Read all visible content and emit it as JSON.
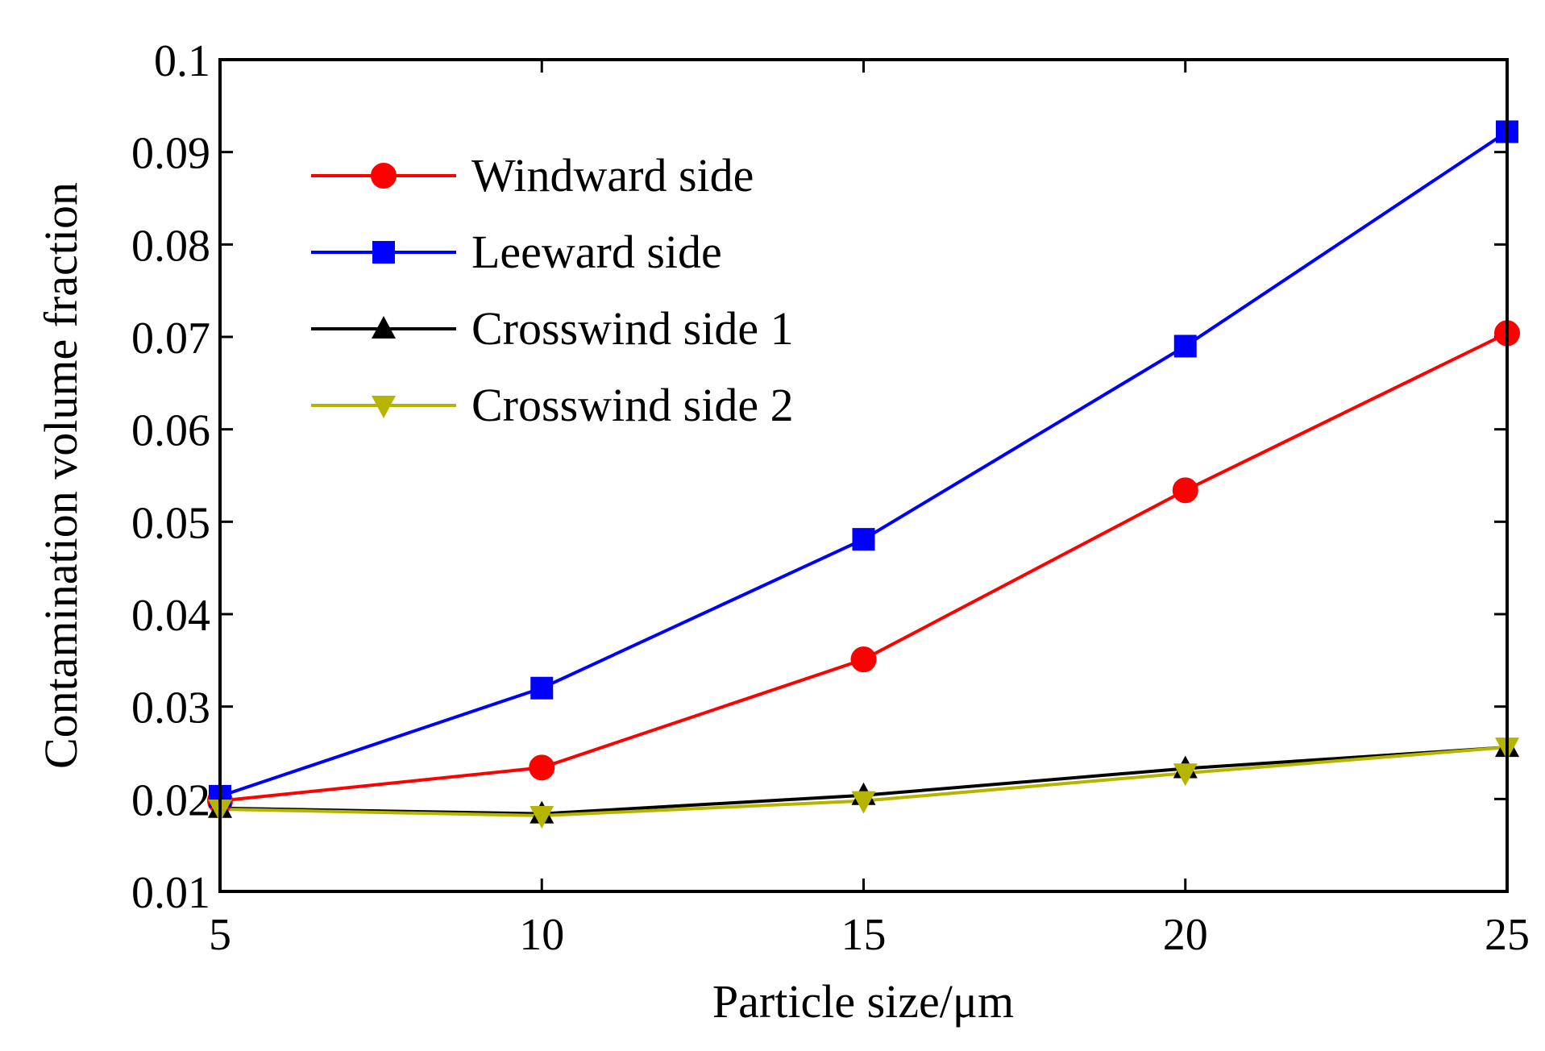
{
  "chart_data": {
    "type": "line",
    "title": "",
    "xlabel": "Particle size/μm",
    "ylabel": "Contamination volume fraction",
    "x": [
      5,
      10,
      15,
      20,
      25
    ],
    "xlim": [
      5,
      25
    ],
    "ylim": [
      0.01,
      0.1
    ],
    "xticks": [
      5,
      10,
      15,
      20,
      25
    ],
    "xtick_labels": [
      "5",
      "10",
      "15",
      "20",
      "25"
    ],
    "yticks": [
      0.01,
      0.02,
      0.03,
      0.04,
      0.05,
      0.06,
      0.07,
      0.08,
      0.09,
      0.1
    ],
    "ytick_labels": [
      "0.01",
      "0.02",
      "0.03",
      "0.04",
      "0.05",
      "0.06",
      "0.07",
      "0.08",
      "0.09",
      "0.1"
    ],
    "grid": false,
    "legend_position": "top-left",
    "series": [
      {
        "name": "Windward side",
        "values": [
          0.0198,
          0.0234,
          0.0351,
          0.0534,
          0.0704
        ],
        "color": "#ff0000",
        "marker": "circle"
      },
      {
        "name": "Leeward side",
        "values": [
          0.0203,
          0.032,
          0.0481,
          0.069,
          0.0922
        ],
        "color": "#0000ff",
        "marker": "square"
      },
      {
        "name": "Crosswind side 1",
        "values": [
          0.019,
          0.0184,
          0.0204,
          0.0233,
          0.0256
        ],
        "color": "#000000",
        "marker": "triangle-up"
      },
      {
        "name": "Crosswind side 2",
        "values": [
          0.0189,
          0.0182,
          0.0198,
          0.0228,
          0.0256
        ],
        "color": "#b5b500",
        "marker": "triangle-down"
      }
    ]
  }
}
